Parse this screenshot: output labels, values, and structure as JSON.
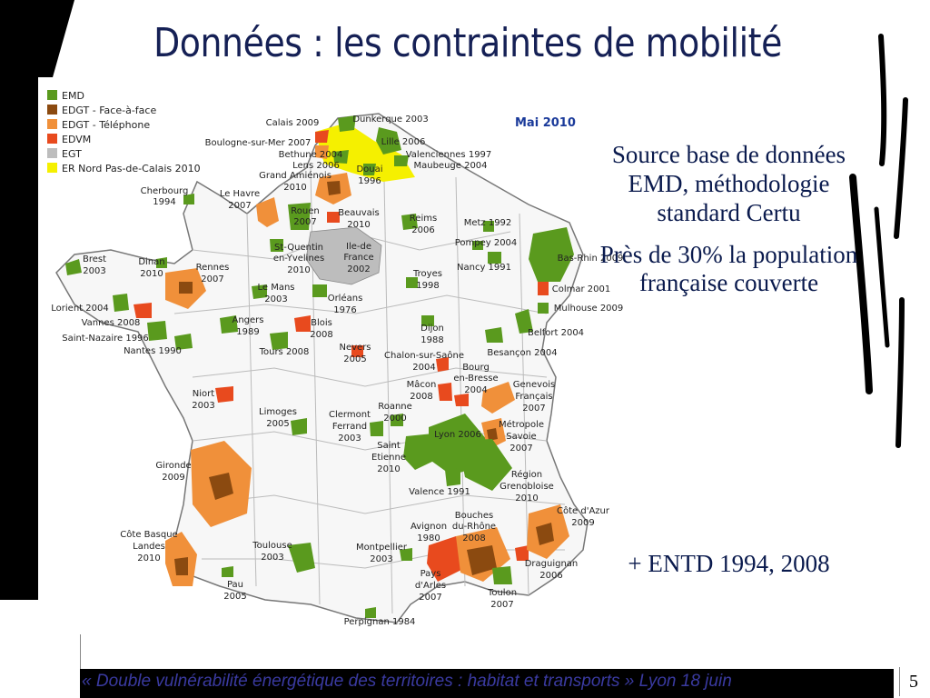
{
  "slide": {
    "title": "Données : les contraintes de mobilité",
    "page_number": "5",
    "footer": "« Double vulnérabilité énergétique des territoires : habitat et transports »  Lyon 18 juin"
  },
  "side_text": {
    "p1": "Source base de données EMD, méthodologie standard Certu",
    "p2": "Près de 30% la population française couverte",
    "p3": "+ ENTD 1994, 2008"
  },
  "map": {
    "date_label": "Mai 2010",
    "legend": [
      {
        "label": "EMD",
        "color": "#5a9a1e"
      },
      {
        "label": "EDGT - Face-à-face",
        "color": "#8b4a10"
      },
      {
        "label": "EDGT - Téléphone",
        "color": "#f0903a"
      },
      {
        "label": "EDVM",
        "color": "#e84a1e"
      },
      {
        "label": "EGT",
        "color": "#bdbdbd"
      },
      {
        "label": "ER Nord Pas-de-Calais 2010",
        "color": "#f5f000"
      }
    ],
    "labels": [
      "Calais 2009",
      "Dunkerque 2003",
      "Boulogne-sur-Mer 2007",
      "Lille 2006",
      "Bethune 2004",
      "Valenciennes 1997",
      "Lens 2006",
      "Maubeuge 2004",
      "Douai",
      "1996",
      "Grand Amiénois",
      "2010",
      "Cherbourg",
      "1994",
      "Le Havre",
      "2007",
      "Rouen",
      "2007",
      "Beauvais",
      "2010",
      "Reims",
      "2006",
      "Metz 1992",
      "Ile-de",
      "France",
      "2002",
      "St-Quentin",
      "en-Yvelines",
      "2010",
      "Pompey 2004",
      "Nancy 1991",
      "Bas-Rhin 2009",
      "Brest",
      "2003",
      "Dinan",
      "2010",
      "Rennes",
      "2007",
      "Troyes",
      "1998",
      "Colmar 2001",
      "Le Mans",
      "2003",
      "Orléans",
      "1976",
      "Mulhouse 2009",
      "Lorient 2004",
      "Vannes 2008",
      "Angers",
      "1989",
      "Blois",
      "2008",
      "Dijon",
      "1988",
      "Belfort 2004",
      "Saint-Nazaire 1996",
      "Nantes 1990",
      "Tours 2008",
      "Nevers",
      "2005",
      "Chalon-sur-Saône",
      "2004",
      "Besançon 2004",
      "Bourg",
      "en-Bresse",
      "2004",
      "Genevois",
      "Français",
      "2007",
      "Niort",
      "2003",
      "Mâcon",
      "2008",
      "Roanne",
      "2000",
      "Limoges",
      "2005",
      "Clermont",
      "Ferrand",
      "2003",
      "Lyon 2006",
      "Métropole",
      "Savoie",
      "2007",
      "Saint",
      "Etienne",
      "2010",
      "Gironde",
      "2009",
      "Région",
      "Grenobloise",
      "2010",
      "Valence 1991",
      "Côte d'Azur",
      "2009",
      "Bouches",
      "du-Rhône",
      "2008",
      "Avignon",
      "1980",
      "Côte Basque",
      "Landes",
      "2010",
      "Toulouse",
      "2003",
      "Montpellier",
      "2003",
      "Pays",
      "d'Arles",
      "2007",
      "Draguignan",
      "2006",
      "Pau",
      "2005",
      "Toulon",
      "2007",
      "Perpignan 1984"
    ]
  }
}
